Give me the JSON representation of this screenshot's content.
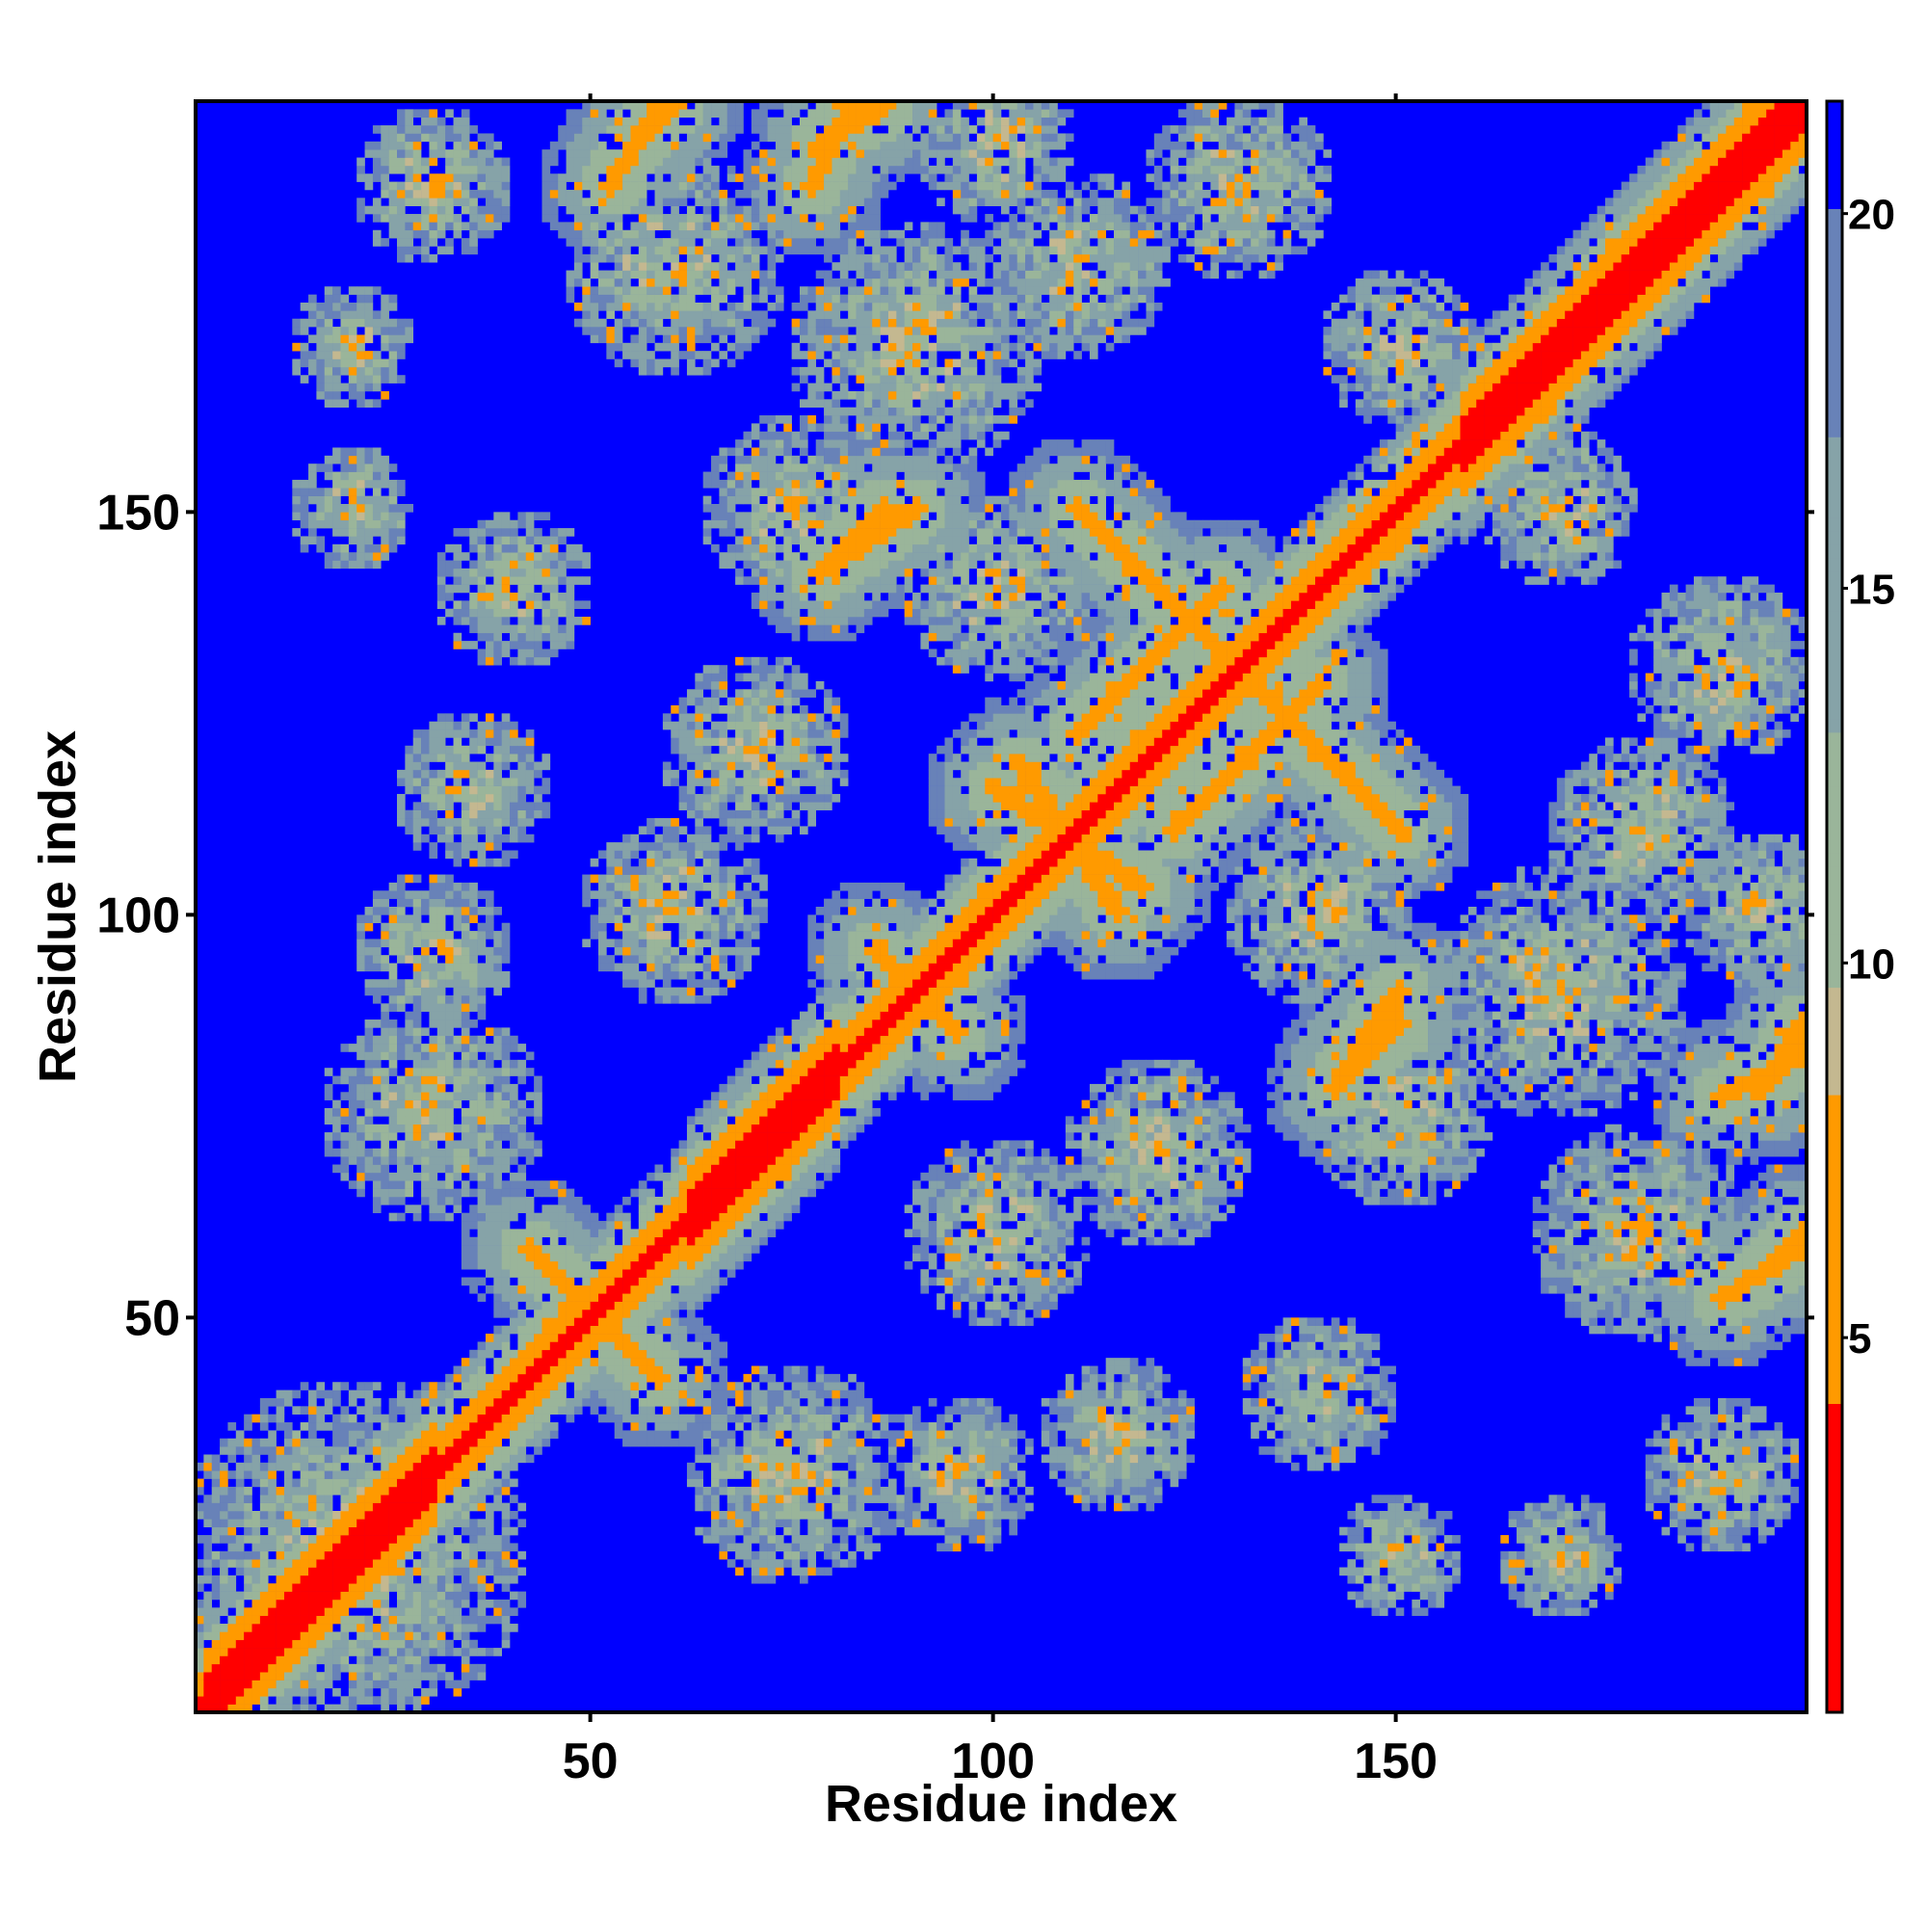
{
  "chart_data": {
    "type": "heatmap",
    "title": "",
    "xlabel": "Residue index",
    "ylabel": "Residue index",
    "xlim": [
      1,
      201
    ],
    "ylim": [
      1,
      201
    ],
    "x_ticks": [
      50,
      100,
      150
    ],
    "y_ticks": [
      50,
      100,
      150
    ],
    "colorbar": {
      "range": [
        0,
        21.5
      ],
      "ticks": [
        5,
        10,
        15,
        20
      ],
      "colors": {
        "near": "#ff0000",
        "close": "#ff9a00",
        "mid": "#9ab59a",
        "far": "#6882b8",
        "none": "#0000ff"
      },
      "stops": [
        0,
        4,
        8.2,
        9.5,
        17,
        20,
        21.5
      ]
    },
    "grid": false,
    "legend": "colorbar at right",
    "features": {
      "diagonal": {
        "from": 1,
        "to": 201
      },
      "helix_diagonal_segments": [
        [
          2,
          30
        ],
        [
          62,
          80
        ],
        [
          158,
          200
        ]
      ],
      "antiparallel_contacts": [
        {
          "a": [
            110,
            135
          ],
          "b": [
            150,
            125
          ]
        },
        {
          "a": [
            122,
            140
          ],
          "b": [
            110,
            128
          ]
        },
        {
          "a": [
            42,
            58
          ],
          "b": [
            58,
            42
          ]
        },
        {
          "a": [
            85,
            95
          ],
          "b": [
            95,
            85
          ]
        },
        {
          "a": [
            103,
            115
          ],
          "b": [
            118,
            100
          ]
        }
      ],
      "parallel_contacts": [
        {
          "x": [
            55,
            60
          ],
          "y": [
            195,
            200
          ]
        },
        {
          "x": [
            78,
            86
          ],
          "y": [
            195,
            200
          ]
        },
        {
          "x": [
            78,
            90
          ],
          "y": [
            142,
            150
          ]
        },
        {
          "x": [
            142,
            150
          ],
          "y": [
            78,
            86
          ]
        },
        {
          "x": [
            190,
            200
          ],
          "y": [
            52,
            58
          ]
        },
        {
          "x": [
            190,
            200
          ],
          "y": [
            77,
            82
          ]
        }
      ]
    }
  }
}
